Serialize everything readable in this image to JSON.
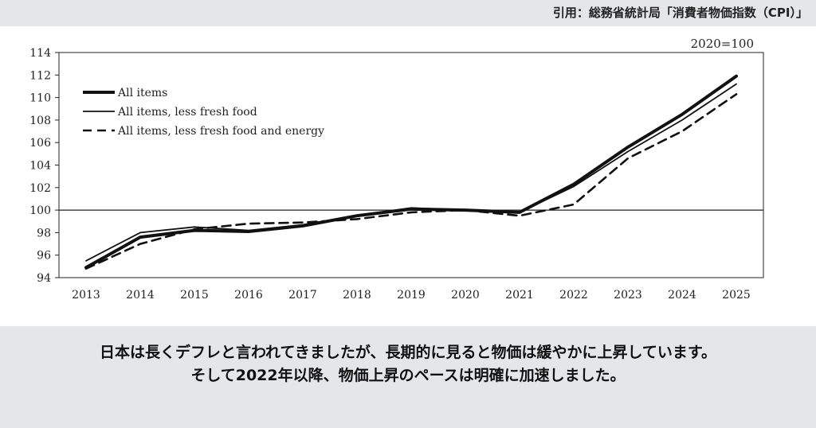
{
  "source_note": "引用：総務省統計局「消費者物価指数（CPI）」",
  "caption_line1": "日本は長くデフレと言われてきましたが、長期的に見ると物価は緩やかに上昇しています。",
  "caption_line2": "そして2022年以降、物価上昇のペースは明確に加速しました。",
  "chart_data": {
    "type": "line",
    "base_note": "2020=100",
    "x": [
      "2013",
      "2014",
      "2015",
      "2016",
      "2017",
      "2018",
      "2019",
      "2020",
      "2021",
      "2022",
      "2023",
      "2024",
      "2025"
    ],
    "yticks": [
      "94",
      "96",
      "98",
      "100",
      "102",
      "104",
      "106",
      "108",
      "110",
      "112",
      "114"
    ],
    "ylim": [
      94,
      114
    ],
    "reference_line": 100,
    "legend_position": "top-left",
    "grid": false,
    "series": [
      {
        "name": "All items",
        "style": "thick",
        "values": [
          94.9,
          97.6,
          98.2,
          98.1,
          98.6,
          99.5,
          100.1,
          100.0,
          99.8,
          102.3,
          105.6,
          108.5,
          111.9
        ]
      },
      {
        "name": "All items, less fresh food",
        "style": "thin",
        "values": [
          95.5,
          98.0,
          98.5,
          98.2,
          98.7,
          99.5,
          100.2,
          100.0,
          99.8,
          102.1,
          105.2,
          108.0,
          111.2
        ]
      },
      {
        "name": "All items, less fresh food and energy",
        "style": "dashed",
        "values": [
          94.8,
          97.0,
          98.3,
          98.8,
          98.9,
          99.2,
          99.8,
          100.0,
          99.5,
          100.5,
          104.6,
          107.0,
          110.3
        ]
      }
    ]
  }
}
